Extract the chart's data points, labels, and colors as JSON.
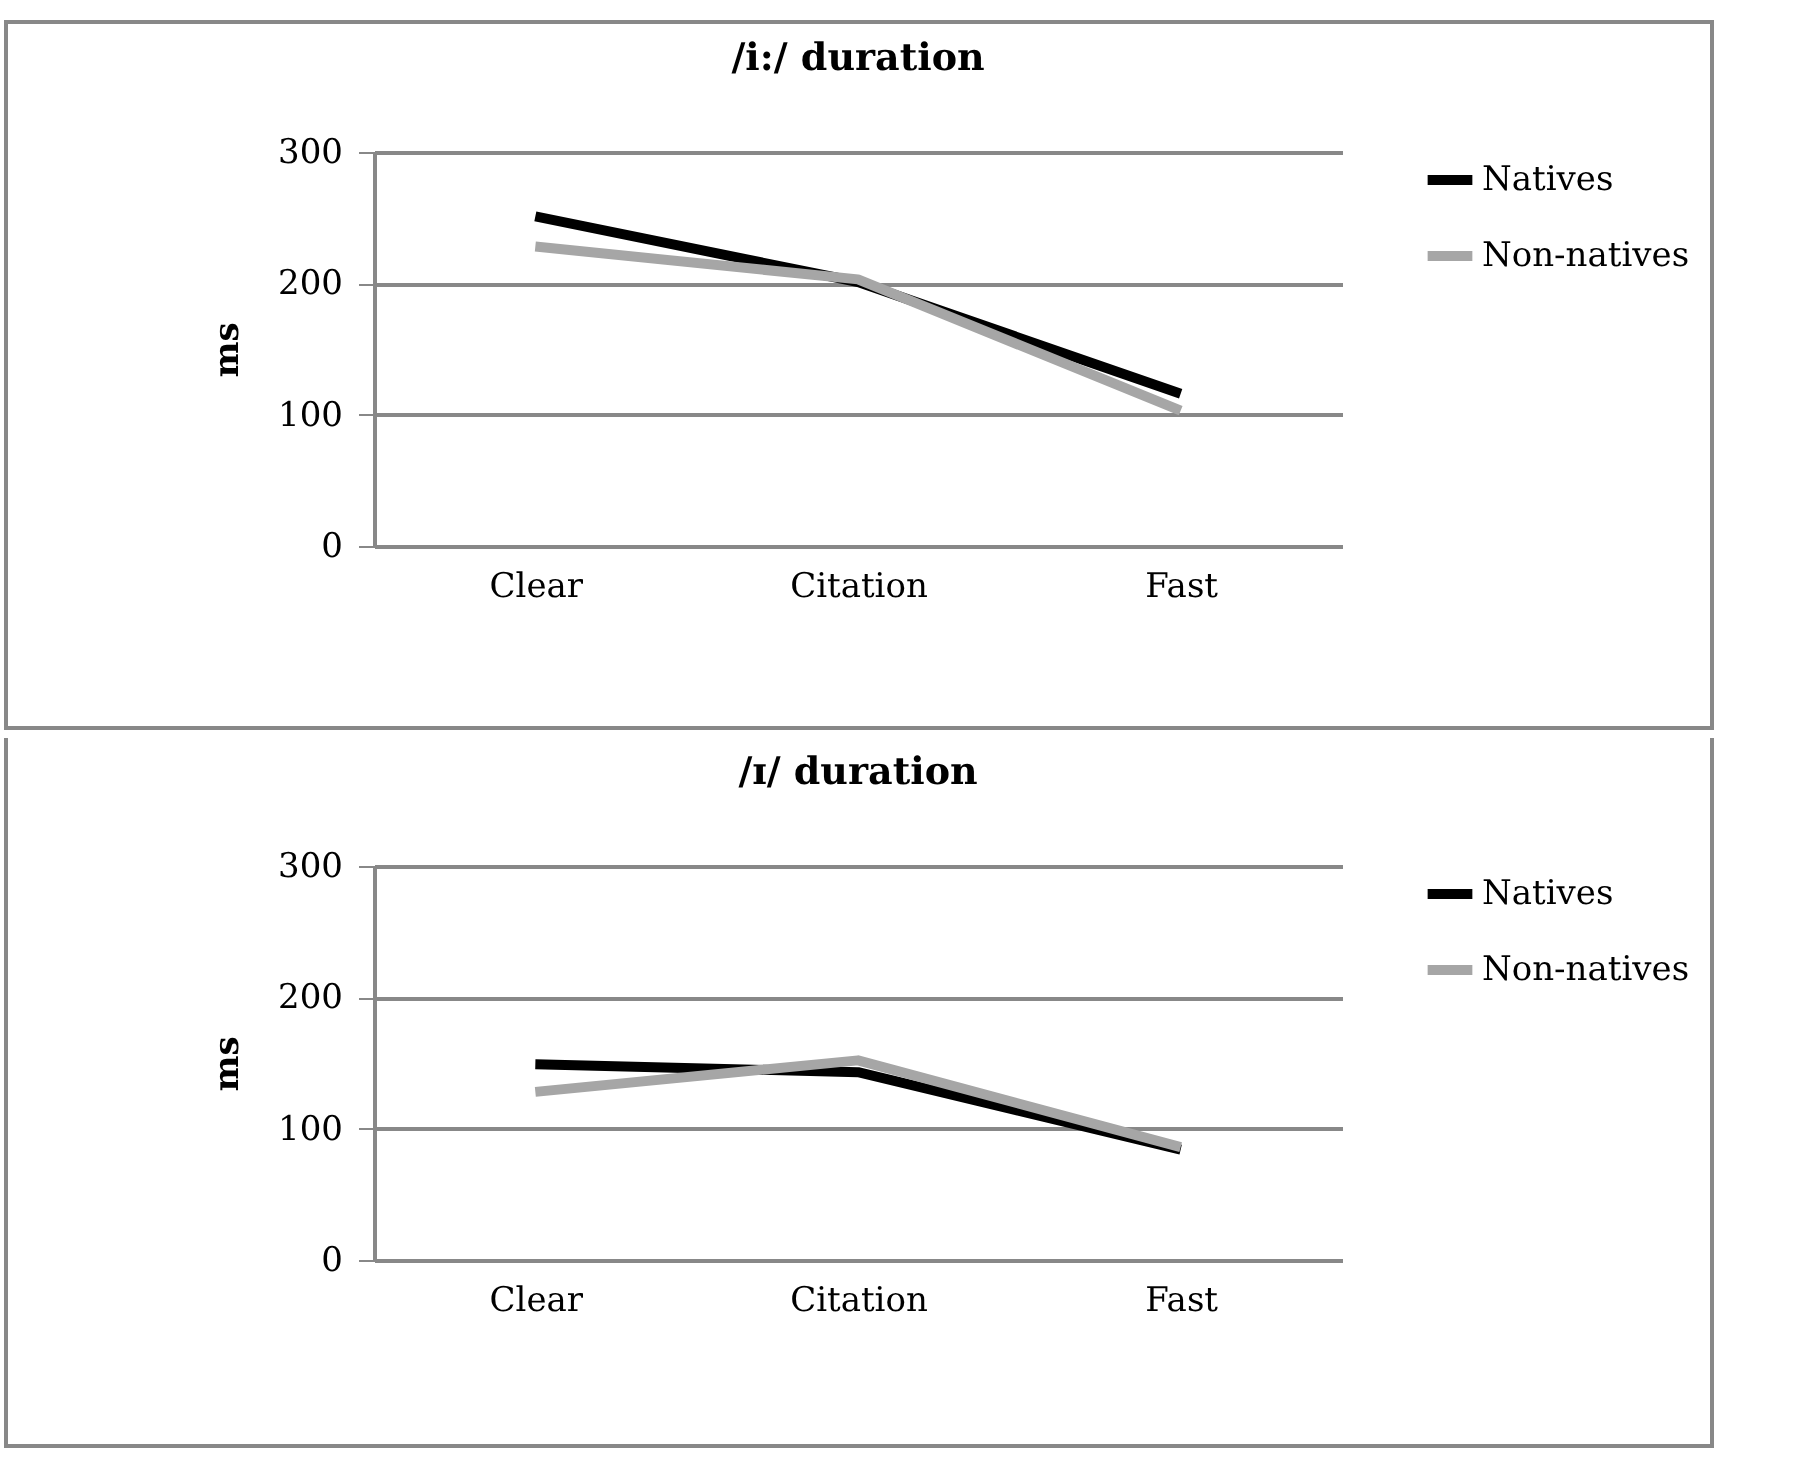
{
  "chart_data": [
    {
      "type": "line",
      "title": "/i:/ duration",
      "ylabel": "ms",
      "categories": [
        "Clear",
        "Citation",
        "Fast"
      ],
      "series": [
        {
          "name": "Natives",
          "color": "#000000",
          "values": [
            251,
            201,
            116
          ]
        },
        {
          "name": "Non-natives",
          "color": "#a6a6a6",
          "values": [
            228,
            203,
            103
          ]
        }
      ],
      "ylim": [
        0,
        300
      ],
      "yticks": [
        0,
        100,
        200,
        300
      ],
      "grid": "y",
      "legend": "right",
      "marker": "none"
    },
    {
      "type": "line",
      "title": "/ɪ/ duration",
      "ylabel": "ms",
      "categories": [
        "Clear",
        "Citation",
        "Fast"
      ],
      "series": [
        {
          "name": "Natives",
          "color": "#000000",
          "values": [
            149,
            143,
            84
          ]
        },
        {
          "name": "Non-natives",
          "color": "#a6a6a6",
          "values": [
            128,
            152,
            86
          ]
        }
      ],
      "ylim": [
        0,
        300
      ],
      "yticks": [
        0,
        100,
        200,
        300
      ],
      "grid": "y",
      "legend": "right",
      "marker": "none"
    }
  ]
}
